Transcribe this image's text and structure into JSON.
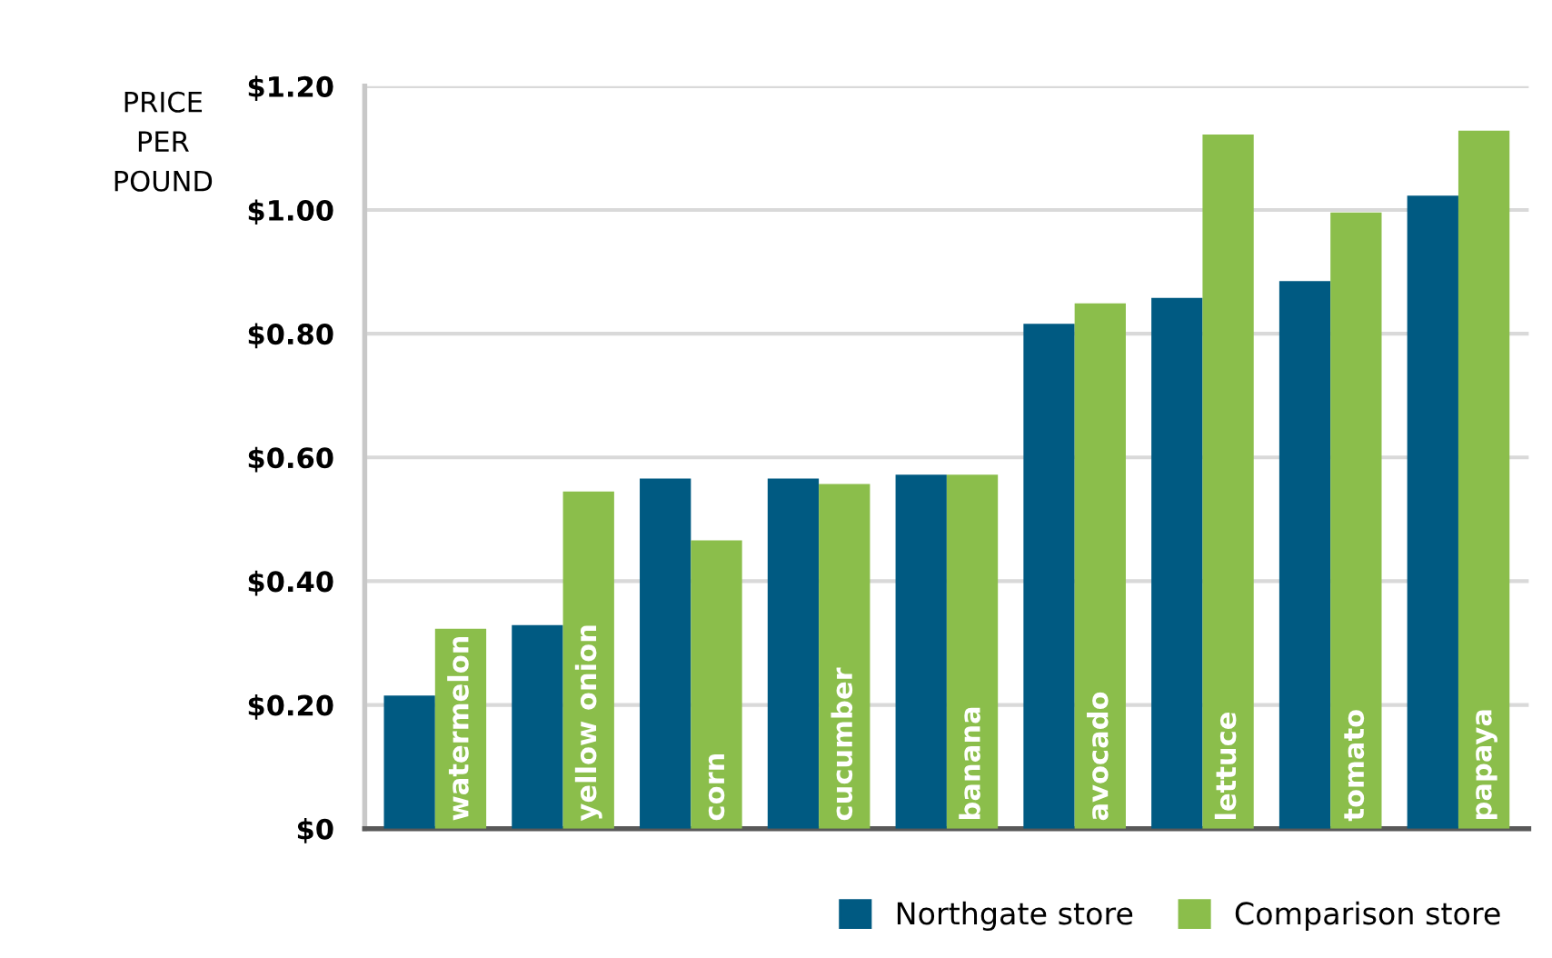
{
  "chart_data": {
    "type": "bar",
    "ylabel": "PRICE\nPER\nPOUND",
    "categories": [
      "watermelon",
      "yellow onion",
      "corn",
      "cucumber",
      "banana",
      "avocado",
      "lettuce",
      "tomato",
      "papaya"
    ],
    "series": [
      {
        "name": "Northgate store",
        "color": "#005a82",
        "values": [
          0.215,
          0.329,
          0.566,
          0.566,
          0.572,
          0.816,
          0.858,
          0.885,
          1.023
        ]
      },
      {
        "name": "Comparison store",
        "color": "#8bbe4b",
        "values": [
          0.323,
          0.545,
          0.466,
          0.557,
          0.572,
          0.849,
          1.122,
          0.996,
          1.128
        ]
      }
    ],
    "ylim": [
      0,
      1.2
    ],
    "yticks": [
      {
        "value": 0,
        "label": "$0"
      },
      {
        "value": 0.2,
        "label": "$0.20"
      },
      {
        "value": 0.4,
        "label": "$0.40"
      },
      {
        "value": 0.6,
        "label": "$0.60"
      },
      {
        "value": 0.8,
        "label": "$0.80"
      },
      {
        "value": 1.0,
        "label": "$1.00"
      },
      {
        "value": 1.2,
        "label": "$1.20"
      }
    ],
    "grid": "y",
    "legend": "bottom right"
  }
}
